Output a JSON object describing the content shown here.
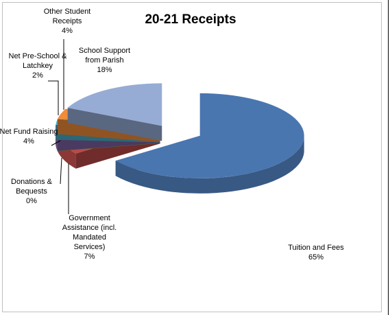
{
  "chart_data": {
    "type": "pie",
    "title": "20-21 Receipts",
    "categories": [
      "Tuition and Fees",
      "Government Assistance (incl. Mandated Services)",
      "Donations & Bequests",
      "Net Fund Raising",
      "Net Pre-School & Latchkey",
      "Other Student Receipts",
      "School Support from Parish"
    ],
    "values": [
      65,
      7,
      0,
      4,
      2,
      4,
      18
    ],
    "value_labels": [
      "65%",
      "7%",
      "0%",
      "4%",
      "2%",
      "4%",
      "18%"
    ],
    "colors": [
      "#4a76b0",
      "#b94a48",
      "#98b957",
      "#7c5fa0",
      "#4aacc5",
      "#f08c3a",
      "#96acd5"
    ]
  }
}
